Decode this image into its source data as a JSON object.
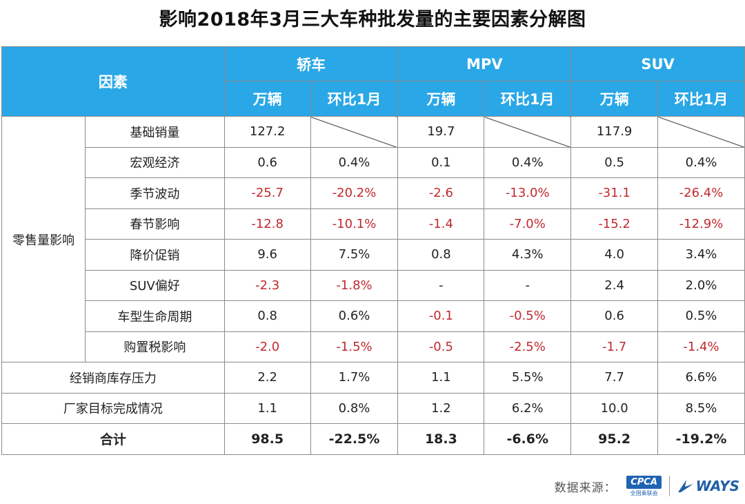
{
  "title": "影响2018年3月三大车种批发量的主要因素分解图",
  "header": {
    "factor": "因素",
    "groups": [
      "轿车",
      "MPV",
      "SUV"
    ],
    "sub": [
      "万辆",
      "环比1月"
    ]
  },
  "group_label": "零售量影响",
  "rows": [
    {
      "label": "基础销量",
      "cells": [
        "127.2",
        "",
        "19.7",
        "",
        "117.9",
        ""
      ]
    },
    {
      "label": "宏观经济",
      "cells": [
        "0.6",
        "0.4%",
        "0.1",
        "0.4%",
        "0.5",
        "0.4%"
      ]
    },
    {
      "label": "季节波动",
      "cells": [
        "-25.7",
        "-20.2%",
        "-2.6",
        "-13.0%",
        "-31.1",
        "-26.4%"
      ]
    },
    {
      "label": "春节影响",
      "cells": [
        "-12.8",
        "-10.1%",
        "-1.4",
        "-7.0%",
        "-15.2",
        "-12.9%"
      ]
    },
    {
      "label": "降价促销",
      "cells": [
        "9.6",
        "7.5%",
        "0.8",
        "4.3%",
        "4.0",
        "3.4%"
      ]
    },
    {
      "label": "SUV偏好",
      "cells": [
        "-2.3",
        "-1.8%",
        "-",
        "-",
        "2.4",
        "2.0%"
      ]
    },
    {
      "label": "车型生命周期",
      "cells": [
        "0.8",
        "0.6%",
        "-0.1",
        "-0.5%",
        "0.6",
        "0.5%"
      ]
    },
    {
      "label": "购置税影响",
      "cells": [
        "-2.0",
        "-1.5%",
        "-0.5",
        "-2.5%",
        "-1.7",
        "-1.4%"
      ]
    }
  ],
  "extra_rows": [
    {
      "label": "经销商库存压力",
      "cells": [
        "2.2",
        "1.7%",
        "1.1",
        "5.5%",
        "7.7",
        "6.6%"
      ]
    },
    {
      "label": "厂家目标完成情况",
      "cells": [
        "1.1",
        "0.8%",
        "1.2",
        "6.2%",
        "10.0",
        "8.5%"
      ]
    }
  ],
  "total": {
    "label": "合计",
    "cells": [
      "98.5",
      "-22.5%",
      "18.3",
      "-6.6%",
      "95.2",
      "-19.2%"
    ]
  },
  "colors": {
    "header_bg": "#2aa7e6",
    "negative": "#c0292e"
  },
  "source": {
    "label": "数据来源：",
    "cpca": "CPCA",
    "cpca_sub": "全国乘联会",
    "ways": "WAYS"
  }
}
